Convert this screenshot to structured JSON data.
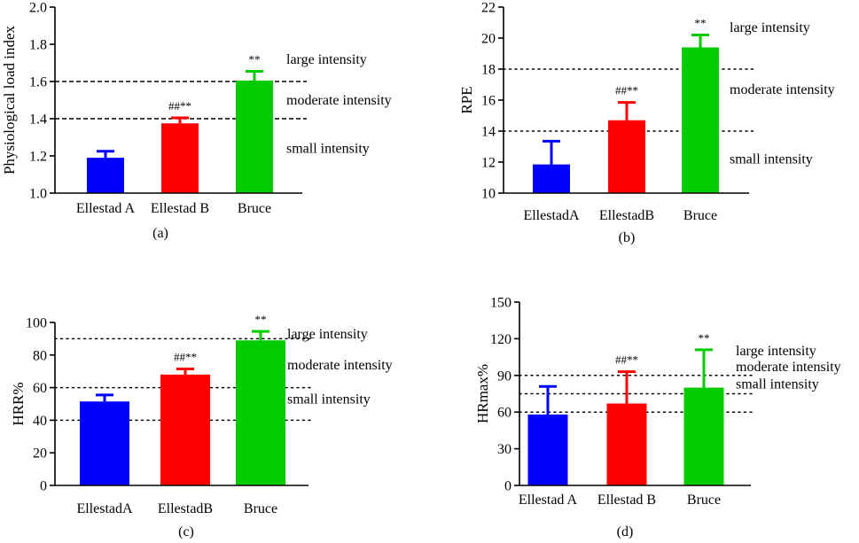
{
  "chart_data": [
    {
      "type": "bar",
      "panel_label": "(a)",
      "ylabel": "Physiological load index",
      "ylim": [
        1.0,
        2.0
      ],
      "yticks": [
        1.0,
        1.2,
        1.4,
        1.6,
        1.8,
        2.0
      ],
      "ytick_labels": [
        "1.0",
        "1.2",
        "1.4",
        "1.6",
        "1.8",
        "2.0"
      ],
      "categories": [
        "Ellestad A",
        "Ellestad B",
        "Bruce"
      ],
      "values": [
        1.19,
        1.375,
        1.605
      ],
      "error_upper": [
        1.225,
        1.405,
        1.655
      ],
      "colors": [
        "#0000FF",
        "#FF0000",
        "#00CC00"
      ],
      "sig_labels": [
        "",
        "##**",
        "**"
      ],
      "reference_lines": [
        1.4,
        1.6
      ],
      "reference_style": "dashed",
      "zones": [
        {
          "label": "large intensity",
          "y": 1.72
        },
        {
          "label": "moderate intensity",
          "y": 1.5
        },
        {
          "label": "small intensity",
          "y": 1.24
        }
      ]
    },
    {
      "type": "bar",
      "panel_label": "(b)",
      "ylabel": "RPE",
      "ylim": [
        10,
        22
      ],
      "yticks": [
        10,
        12,
        14,
        16,
        18,
        20,
        22
      ],
      "ytick_labels": [
        "10",
        "12",
        "14",
        "16",
        "18",
        "20",
        "22"
      ],
      "categories": [
        "EllestadA",
        "EllestadB",
        "Bruce"
      ],
      "values": [
        11.85,
        14.7,
        19.4
      ],
      "error_upper": [
        13.35,
        15.85,
        20.2
      ],
      "colors": [
        "#0000FF",
        "#FF0000",
        "#00CC00"
      ],
      "sig_labels": [
        "",
        "##**",
        "**"
      ],
      "reference_lines": [
        14,
        18
      ],
      "reference_style": "dotted",
      "zones": [
        {
          "label": "large intensity",
          "y": 20.7
        },
        {
          "label": "moderate intensity",
          "y": 16.7
        },
        {
          "label": "small intensity",
          "y": 12.2
        }
      ]
    },
    {
      "type": "bar",
      "panel_label": "(c)",
      "ylabel": "HRR%",
      "ylim": [
        0,
        100
      ],
      "yticks": [
        0,
        20,
        40,
        60,
        80,
        100
      ],
      "ytick_labels": [
        "0",
        "20",
        "40",
        "60",
        "80",
        "100"
      ],
      "categories": [
        "EllestadA",
        "EllestadB",
        "Bruce"
      ],
      "values": [
        51.5,
        68,
        89
      ],
      "error_upper": [
        55.5,
        71.5,
        94.5
      ],
      "colors": [
        "#0000FF",
        "#FF0000",
        "#00CC00"
      ],
      "sig_labels": [
        "",
        "##**",
        "**"
      ],
      "reference_lines": [
        40,
        60,
        90
      ],
      "reference_style": "dotted",
      "zones": [
        {
          "label": "large intensity",
          "y": 93
        },
        {
          "label": "moderate intensity",
          "y": 74
        },
        {
          "label": "small intensity",
          "y": 53
        }
      ]
    },
    {
      "type": "bar",
      "panel_label": "(d)",
      "ylabel": "HRmax%",
      "ylim": [
        0,
        150
      ],
      "yticks": [
        0,
        30,
        60,
        90,
        120,
        150
      ],
      "ytick_labels": [
        "0",
        "30",
        "60",
        "90",
        "120",
        "150"
      ],
      "categories": [
        "Ellestad A",
        "Ellestad B",
        "Bruce"
      ],
      "values": [
        58,
        67,
        80
      ],
      "error_upper": [
        81,
        93,
        111
      ],
      "colors": [
        "#0000FF",
        "#FF0000",
        "#00CC00"
      ],
      "sig_labels": [
        "",
        "##**",
        "**"
      ],
      "reference_lines": [
        60,
        75,
        90
      ],
      "reference_style": "dotted",
      "zones": [
        {
          "label": "large intensity",
          "y": 110
        },
        {
          "label": "moderate intensity",
          "y": 97
        },
        {
          "label": "small intensity",
          "y": 83
        }
      ]
    }
  ]
}
